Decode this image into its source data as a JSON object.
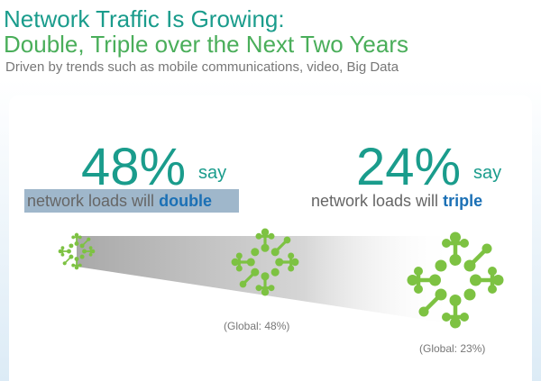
{
  "header": {
    "title_line1": "Network Traffic Is Growing:",
    "title_line2": "Double, Triple over the Next Two Years",
    "subtitle": "Driven by trends such as mobile communications, video, Big Data"
  },
  "stats": [
    {
      "value": "48%",
      "say": "say",
      "text": "network loads will",
      "emphasis": "double",
      "global": "(Global: 48%)"
    },
    {
      "value": "24%",
      "say": "say",
      "text": "network loads will",
      "emphasis": "triple",
      "global": "(Global: 23%)"
    }
  ]
}
